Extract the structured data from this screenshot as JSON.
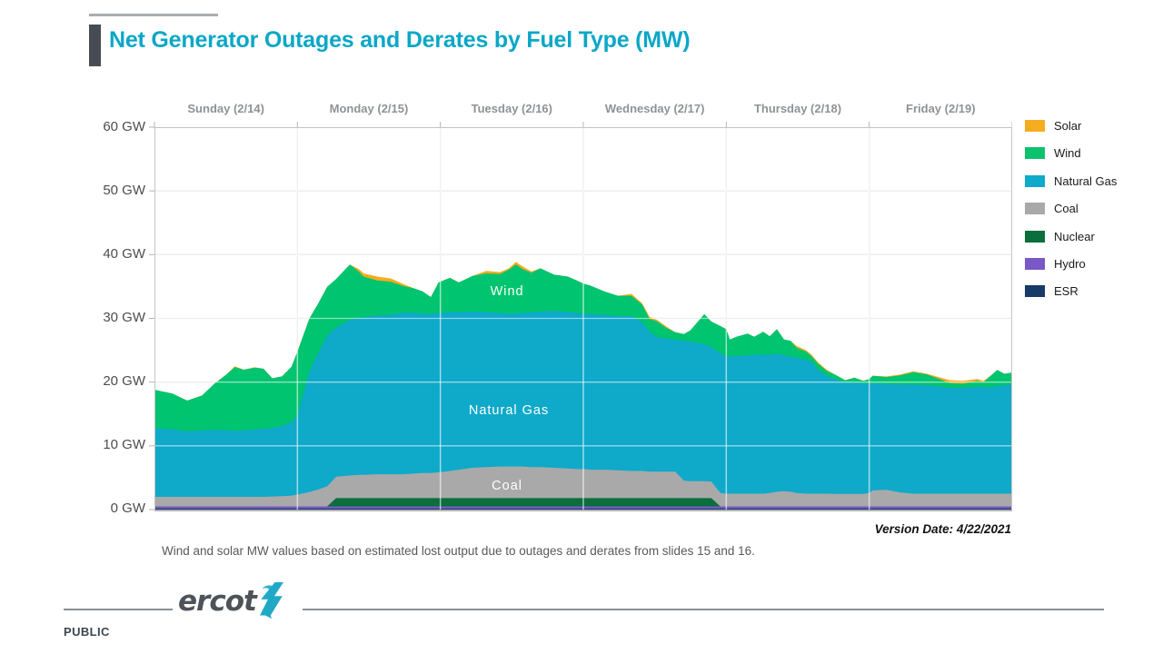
{
  "title": "Net Generator Outages and Derates by Fuel Type (MW)",
  "note": "Wind and solar MW values based on estimated lost output due to outages and derates from slides 15 and 16.",
  "version_date": "Version Date: 4/22/2021",
  "footer": {
    "classification": "PUBLIC",
    "logo_text": "ercot"
  },
  "legend": [
    {
      "label": "Solar",
      "color": "#f5ac1e"
    },
    {
      "label": "Wind",
      "color": "#0cc26e"
    },
    {
      "label": "Natural Gas",
      "color": "#0fa9c9"
    },
    {
      "label": "Coal",
      "color": "#a9a9a9"
    },
    {
      "label": "Nuclear",
      "color": "#0a6e3d"
    },
    {
      "label": "Hydro",
      "color": "#7859c6"
    },
    {
      "label": "ESR",
      "color": "#173a67"
    }
  ],
  "chart_data": {
    "type": "area",
    "stacked": true,
    "title": "Net Generator Outages and Derates by Fuel Type (MW)",
    "unit": "GW",
    "ylim": [
      0,
      60
    ],
    "xlim_hours": [
      0,
      144
    ],
    "grid": true,
    "legend_position": "right",
    "day_labels": [
      "Sunday (2/14)",
      "Monday (2/15)",
      "Tuesday (2/16)",
      "Wednesday (2/17)",
      "Thursday (2/18)",
      "Friday (2/19)"
    ],
    "y_tick_labels": [
      "60 GW",
      "50 GW",
      "40 GW",
      "30 GW",
      "20 GW",
      "10 GW",
      "0 GW"
    ],
    "inner_labels": [
      {
        "text": "Wind",
        "hour": 59.2,
        "gw": 33.6
      },
      {
        "text": "Natural Gas",
        "hour": 59.5,
        "gw": 15.0
      },
      {
        "text": "Coal",
        "hour": 59.2,
        "gw": 3.1
      }
    ],
    "hours": [
      0,
      3,
      5.5,
      8,
      10,
      12,
      13.5,
      15,
      16.8,
      18.3,
      19.8,
      21.4,
      23,
      24,
      26,
      27.5,
      29,
      30.5,
      32.8,
      34.3,
      35.1,
      37.4,
      39.7,
      41.9,
      43.5,
      45,
      46.4,
      47.7,
      49.6,
      51.1,
      53.4,
      55.7,
      58,
      59.5,
      60.7,
      61.8,
      63.3,
      64.8,
      67.1,
      69.4,
      70.9,
      72,
      73.2,
      75.5,
      77.8,
      80.1,
      81.9,
      83.1,
      84.4,
      85.9,
      87.4,
      88.9,
      90,
      92.3,
      93.5,
      95,
      96,
      96.6,
      97.7,
      99.6,
      100.7,
      102.2,
      103.3,
      104.5,
      105.7,
      106.8,
      107.8,
      109.4,
      110.3,
      111.4,
      112.9,
      114.4,
      116,
      117.5,
      119,
      120,
      120.6,
      122.9,
      125.2,
      127.4,
      129.7,
      132,
      133.5,
      135.8,
      138.1,
      139.2,
      140.4,
      141.5,
      142.7,
      144
    ],
    "series": [
      {
        "name": "ESR",
        "color": "#173a67",
        "values": 0.15
      },
      {
        "name": "Hydro",
        "color": "#7859c6",
        "values": 0.35
      },
      {
        "name": "Nuclear",
        "color": "#0a6e3d",
        "values": [
          0,
          0,
          0,
          0,
          0,
          0,
          0,
          0,
          0,
          0,
          0,
          0,
          0,
          0,
          0,
          0,
          0,
          1.3,
          1.3,
          1.3,
          1.3,
          1.3,
          1.3,
          1.3,
          1.3,
          1.3,
          1.3,
          1.3,
          1.3,
          1.3,
          1.3,
          1.3,
          1.3,
          1.3,
          1.3,
          1.3,
          1.3,
          1.3,
          1.3,
          1.3,
          1.3,
          1.3,
          1.3,
          1.3,
          1.3,
          1.3,
          1.3,
          1.3,
          1.3,
          1.3,
          1.3,
          1.3,
          1.3,
          1.3,
          1.3,
          0,
          0,
          0,
          0,
          0,
          0,
          0,
          0,
          0,
          0,
          0,
          0,
          0,
          0,
          0,
          0,
          0,
          0,
          0,
          0,
          0,
          0,
          0,
          0,
          0,
          0,
          0,
          0,
          0,
          0,
          0,
          0,
          0,
          0,
          0
        ]
      },
      {
        "name": "Coal",
        "color": "#a9a9a9",
        "values": [
          1.5,
          1.5,
          1.5,
          1.5,
          1.5,
          1.5,
          1.5,
          1.5,
          1.5,
          1.5,
          1.55,
          1.6,
          1.7,
          1.85,
          2.25,
          2.65,
          3.15,
          3.35,
          3.55,
          3.65,
          3.65,
          3.75,
          3.75,
          3.75,
          3.85,
          3.95,
          3.95,
          4.05,
          4.25,
          4.45,
          4.75,
          4.85,
          4.95,
          4.95,
          4.95,
          4.95,
          4.85,
          4.85,
          4.75,
          4.65,
          4.55,
          4.55,
          4.45,
          4.45,
          4.35,
          4.25,
          4.25,
          4.15,
          4.15,
          4.15,
          4.15,
          2.75,
          2.65,
          2.65,
          2.6,
          2.1,
          2.0,
          2.0,
          2.0,
          2.0,
          2.0,
          2.0,
          2.1,
          2.3,
          2.4,
          2.3,
          2.1,
          2.0,
          2.0,
          2.0,
          2.0,
          1.95,
          1.95,
          1.95,
          1.95,
          2.1,
          2.5,
          2.6,
          2.2,
          2.0,
          2.0,
          2.0,
          2.0,
          2.0,
          2.0,
          2.0,
          2.0,
          2.0,
          2.0,
          2.0
        ]
      },
      {
        "name": "Natural Gas",
        "color": "#0fa9c9",
        "values": [
          10.8,
          10.6,
          10.3,
          10.4,
          10.5,
          10.45,
          10.35,
          10.45,
          10.55,
          10.7,
          10.75,
          11.0,
          11.5,
          12.4,
          18.9,
          21.4,
          23.7,
          23.4,
          24.4,
          24.6,
          24.7,
          24.9,
          25.0,
          25.4,
          25.2,
          25.0,
          24.9,
          25.0,
          24.9,
          24.7,
          24.5,
          24.3,
          24.1,
          24.0,
          24.0,
          24.1,
          24.3,
          24.4,
          24.6,
          24.5,
          24.5,
          24.4,
          24.4,
          24.3,
          24.2,
          24.3,
          23.3,
          22.0,
          21.1,
          20.9,
          20.7,
          21.9,
          21.9,
          21.5,
          21.1,
          21.9,
          21.6,
          21.5,
          21.6,
          21.7,
          21.8,
          21.8,
          21.7,
          21.6,
          21.3,
          21.2,
          21.2,
          21.0,
          20.8,
          19.4,
          18.5,
          17.95,
          17.45,
          17.45,
          17.35,
          17.2,
          16.8,
          16.6,
          16.9,
          17.1,
          17.0,
          16.8,
          16.6,
          16.6,
          16.8,
          16.7,
          16.7,
          16.9,
          17.0,
          17.2
        ]
      },
      {
        "name": "Wind",
        "color": "#00c46f",
        "values": [
          6.0,
          5.6,
          4.8,
          5.5,
          7.2,
          8.7,
          10.0,
          9.5,
          9.7,
          9.4,
          7.8,
          7.8,
          8.7,
          10.0,
          8.3,
          7.8,
          7.6,
          7.6,
          8.7,
          7.3,
          6.4,
          5.5,
          5.2,
          4.1,
          3.9,
          3.5,
          2.7,
          4.8,
          5.4,
          4.7,
          5.6,
          6.1,
          6.1,
          6.9,
          7.7,
          6.9,
          6.2,
          6.8,
          5.7,
          5.6,
          5.1,
          4.7,
          4.5,
          3.7,
          3.2,
          3.2,
          2.8,
          2.0,
          2.5,
          1.7,
          1.2,
          1.1,
          1.8,
          4.7,
          4.0,
          4.3,
          4.2,
          2.7,
          3.0,
          3.4,
          2.8,
          3.6,
          2.9,
          3.9,
          2.5,
          2.5,
          1.6,
          1.3,
          0.8,
          1.0,
          0.75,
          0.7,
          0.4,
          0.8,
          0.4,
          0.7,
          1.2,
          1.1,
          1.45,
          1.95,
          1.7,
          1.1,
          0.75,
          0.65,
          0.9,
          0.8,
          1.8,
          2.5,
          1.8,
          1.8
        ]
      },
      {
        "name": "Solar",
        "color": "#f5ac1e",
        "values": [
          0,
          0,
          0,
          0,
          0,
          0,
          0.15,
          0,
          0.1,
          0,
          0,
          0,
          0,
          0,
          0,
          0,
          0,
          0,
          0,
          0.4,
          0.5,
          0.6,
          0.5,
          0.3,
          0,
          0,
          0,
          0,
          0,
          0,
          0,
          0.4,
          0.3,
          0.2,
          0.4,
          0.4,
          0.2,
          0,
          0,
          0,
          0,
          0,
          0,
          0,
          0,
          0.3,
          0.2,
          0.3,
          0.2,
          0.2,
          0,
          0,
          0,
          0,
          0,
          0,
          0,
          0,
          0,
          0,
          0,
          0,
          0,
          0,
          0,
          0,
          0.3,
          0.2,
          0.2,
          0.2,
          0.15,
          0,
          0,
          0,
          0,
          0,
          0,
          0.1,
          0.15,
          0.15,
          0.1,
          0.3,
          0.45,
          0.45,
          0.3,
          0.2,
          0,
          0,
          0,
          0
        ]
      }
    ]
  }
}
